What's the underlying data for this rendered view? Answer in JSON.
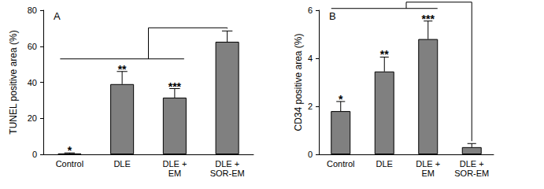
{
  "chart_data": [
    {
      "type": "bar",
      "title": "A",
      "categories": [
        "Control",
        "DLE",
        "DLE +\nEM",
        "DLE +\nSOR-EM"
      ],
      "values": [
        0.5,
        39,
        31.5,
        62.5
      ],
      "errors": [
        0.3,
        7,
        5,
        6
      ],
      "annotations": [
        "*",
        "**",
        "***",
        null
      ],
      "y_label": "TUNEL positive area (%)",
      "ylim": [
        0,
        80
      ],
      "yticks": [
        0,
        20,
        40,
        60,
        80
      ],
      "color": "#808080",
      "grid": false
    },
    {
      "type": "bar",
      "title": "B",
      "categories": [
        "Control",
        "DLE",
        "DLE +\nEM",
        "DLE +\nSOR-EM"
      ],
      "values": [
        1.8,
        3.45,
        4.8,
        0.3
      ],
      "errors": [
        0.4,
        0.6,
        0.75,
        0.15
      ],
      "annotations": [
        "*",
        "**",
        "***",
        null
      ],
      "y_label": "CD34 positive area (%)",
      "ylim": [
        0,
        6
      ],
      "yticks": [
        0,
        2,
        4,
        6
      ],
      "color": "#808080",
      "grid": false
    }
  ]
}
